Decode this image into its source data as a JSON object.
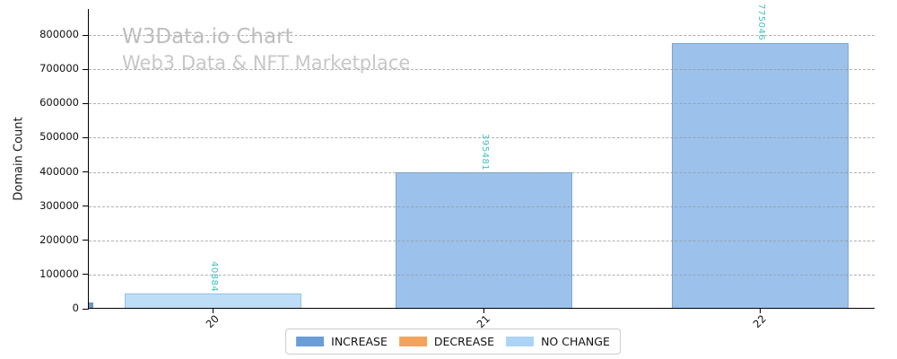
{
  "chart_data": {
    "type": "bar",
    "title": "W3Data.io Chart",
    "subtitle": "Web3 Data & NFT Marketplace",
    "xlabel": "",
    "ylabel": "Domain Count",
    "categories": [
      "20",
      "21",
      "22"
    ],
    "values": [
      40884,
      395481,
      775046
    ],
    "value_labels": [
      "40884",
      "395481",
      "775046"
    ],
    "bar_styles": [
      "no_change",
      "increase",
      "increase"
    ],
    "ylim": [
      0,
      800000
    ],
    "yticks": [
      0,
      100000,
      200000,
      300000,
      400000,
      500000,
      600000,
      700000,
      800000
    ],
    "grid": "horizontal-dashed",
    "legend_position": "bottom-center",
    "legend": [
      {
        "label": "INCREASE",
        "color": "#6b9ed6"
      },
      {
        "label": "DECREASE",
        "color": "#f2a45c"
      },
      {
        "label": "NO CHANGE",
        "color": "#aed4f5"
      }
    ],
    "colors": {
      "bar_fill_increase": "#9cc2ec",
      "bar_edge_increase": "#77a5da",
      "bar_fill_no_change": "#bedef7",
      "bar_edge_no_change": "#8fc3ec",
      "value_label": "#3fc0c0",
      "watermark": "#c2c2c2",
      "gridline": "#bbbbbb",
      "axis": "#000000",
      "partial_bar_at_origin": "#7096bf"
    }
  }
}
